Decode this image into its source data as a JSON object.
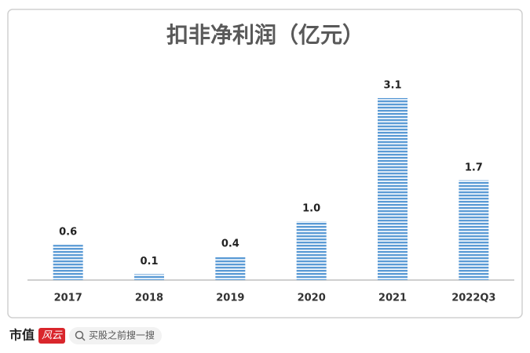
{
  "chart_data": {
    "type": "bar",
    "title": "扣非净利润（亿元）",
    "categories": [
      "2017",
      "2018",
      "2019",
      "2020",
      "2021",
      "2022Q3"
    ],
    "values": [
      0.6,
      0.1,
      0.4,
      1.0,
      3.1,
      1.7
    ],
    "value_labels": [
      "0.6",
      "0.1",
      "0.4",
      "1.0",
      "3.1",
      "1.7"
    ],
    "color": "#5b9bd5"
  },
  "footer": {
    "brand": "市值",
    "brand_logo": "风云",
    "search": "买股之前搜一搜"
  }
}
